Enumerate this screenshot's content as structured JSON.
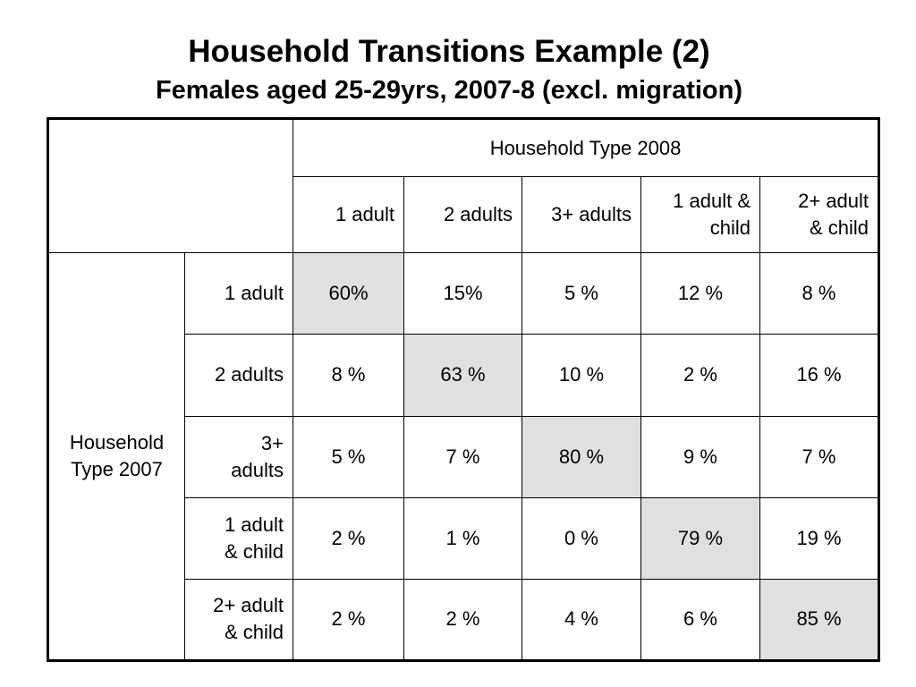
{
  "title": "Household Transitions Example (2)",
  "subtitle": "Females aged 25-29yrs, 2007-8 (excl. migration)",
  "table": {
    "col_group_label": "Household Type 2008",
    "row_group_label_line1": "Household",
    "row_group_label_line2": "Type 2007",
    "col_headers": [
      {
        "l1": "1 adult",
        "l2": ""
      },
      {
        "l1": "2 adults",
        "l2": ""
      },
      {
        "l1": "3+ adults",
        "l2": ""
      },
      {
        "l1": "1 adult &",
        "l2": "child"
      },
      {
        "l1": "2+ adult",
        "l2": "& child"
      }
    ],
    "rows": [
      {
        "l1": "1 adult",
        "l2": "",
        "cells": [
          "60%",
          "15%",
          "5 %",
          "12 %",
          "8 %"
        ]
      },
      {
        "l1": "2 adults",
        "l2": "",
        "cells": [
          "8 %",
          "63 %",
          "10 %",
          "2 %",
          "16 %"
        ]
      },
      {
        "l1": "3+",
        "l2": "adults",
        "cells": [
          "5 %",
          "7 %",
          "80 %",
          "9 %",
          "7 %"
        ]
      },
      {
        "l1": "1 adult",
        "l2": "& child",
        "cells": [
          "2 %",
          "1 %",
          "0 %",
          "79 %",
          "19 %"
        ]
      },
      {
        "l1": "2+ adult",
        "l2": "& child",
        "cells": [
          "2 %",
          "2 %",
          "4 %",
          "6 %",
          "85 %"
        ]
      }
    ]
  },
  "colors": {
    "highlight": "#e0e0e0",
    "border": "#000000",
    "background": "#ffffff"
  }
}
